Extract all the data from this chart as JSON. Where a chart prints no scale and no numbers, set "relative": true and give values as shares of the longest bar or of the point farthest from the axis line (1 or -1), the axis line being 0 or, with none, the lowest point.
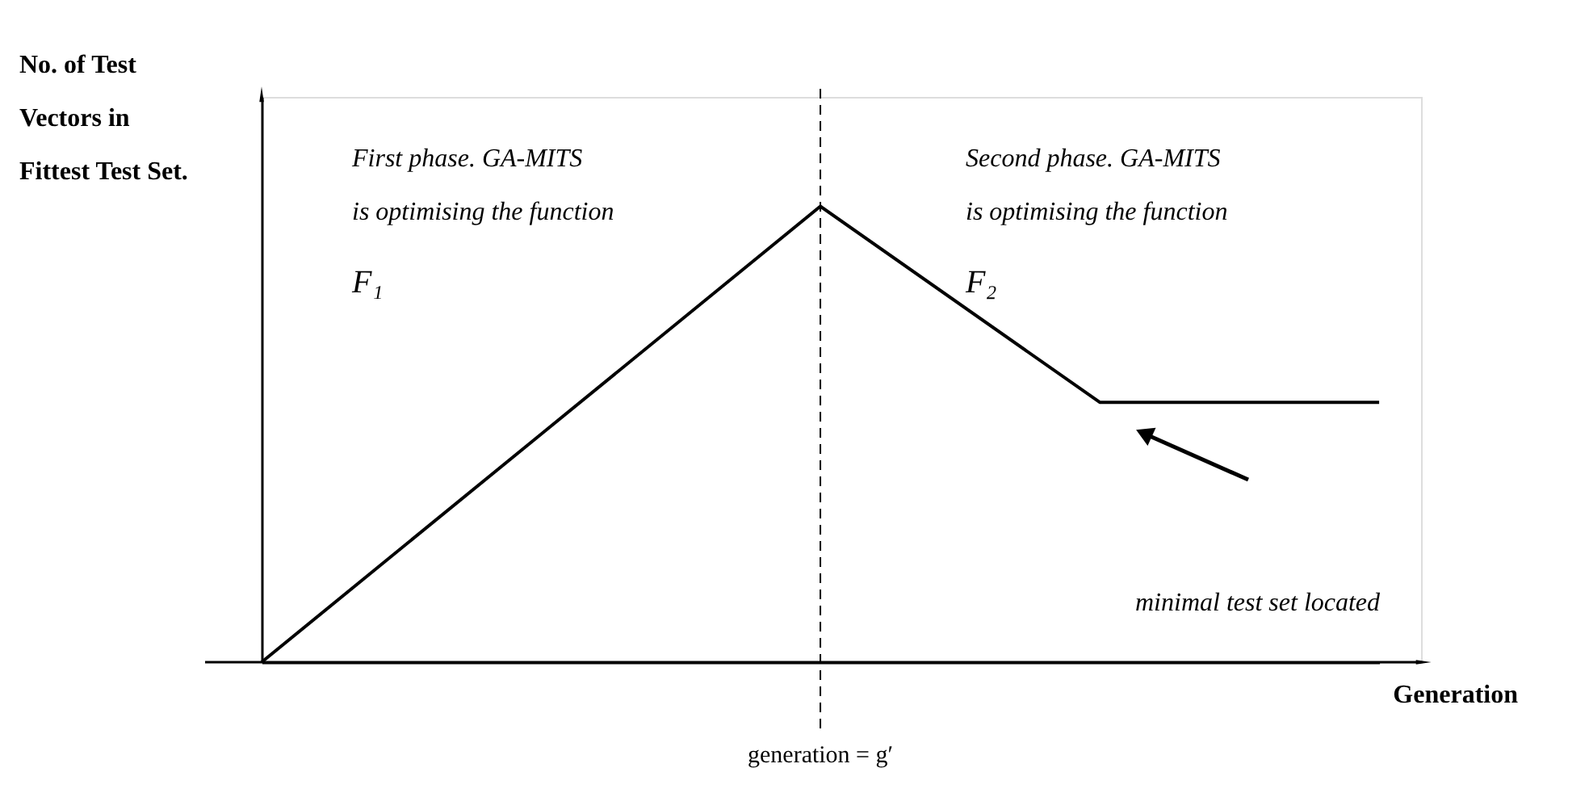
{
  "chart_data": {
    "type": "line",
    "relative": true,
    "categories": [
      null,
      null,
      null,
      null,
      null
    ],
    "values": [
      0,
      0.5,
      1,
      0.57,
      0.57
    ],
    "color": "#000000",
    "tick_labels": false,
    "grid": false,
    "xlabel": "Generation",
    "ylabel": "No. of Test\nVectors in\nFittest Test Set.",
    "ref_lines": [
      {
        "axis": "x",
        "label": "generation = g′",
        "line_style": "dashed",
        "color": "#000000"
      }
    ],
    "annotations": [
      "First phase. GA-MITS\nis optimising the function",
      "F₁",
      "Second phase. GA-MITS\nis optimising the function",
      "F₂",
      "minimal test set located"
    ]
  }
}
